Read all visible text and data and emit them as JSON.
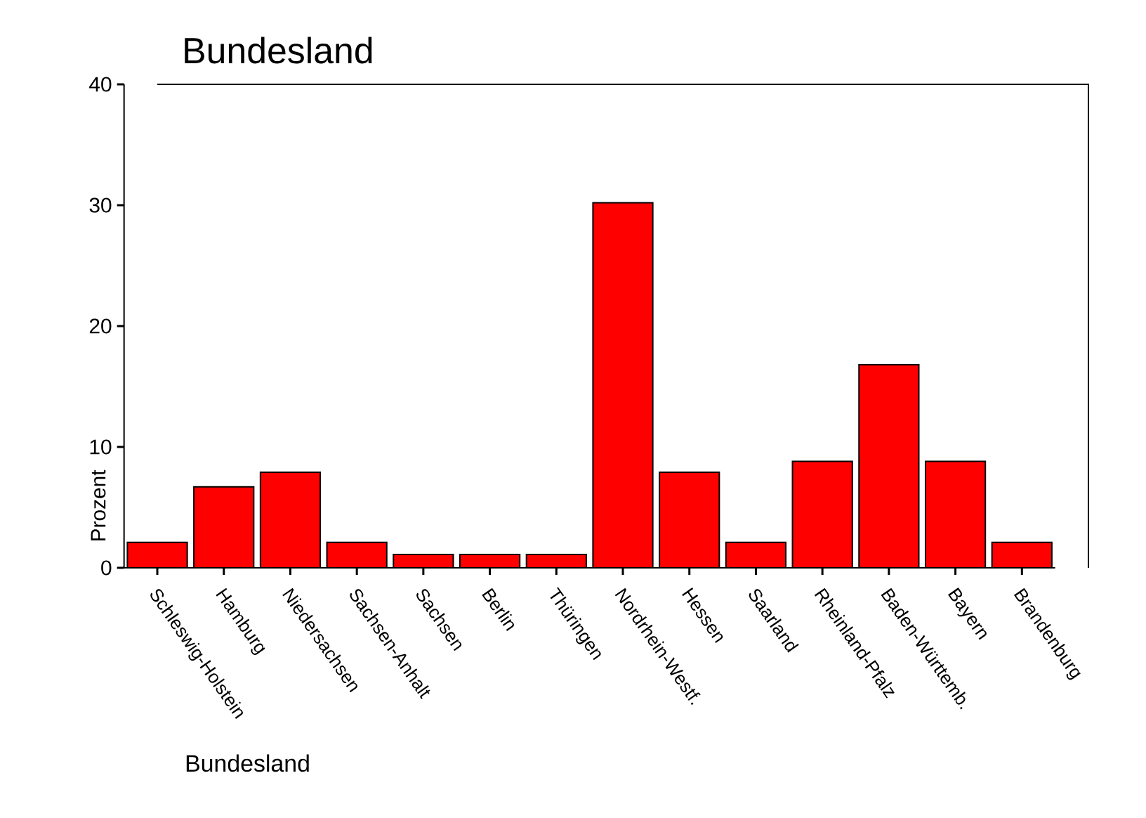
{
  "chart_data": {
    "type": "bar",
    "title": "Bundesland",
    "xlabel": "Bundesland",
    "ylabel": "Prozent",
    "categories": [
      "Schleswig-Holstein",
      "Hamburg",
      "Niedersachsen",
      "Sachsen-Anhalt",
      "Sachsen",
      "Berlin",
      "Thüringen",
      "Nordrhein-Westf.",
      "Hessen",
      "Saarland",
      "Rheinland-Pfalz",
      "Baden-Württemb.",
      "Bayern",
      "Brandenburg"
    ],
    "values": [
      2.1,
      6.7,
      7.9,
      2.1,
      1.1,
      1.1,
      1.1,
      30.2,
      7.9,
      2.1,
      8.8,
      16.8,
      8.8,
      2.1
    ],
    "color": "#ff0000",
    "ylim": [
      0,
      40
    ],
    "yticks": [
      0,
      10,
      20,
      30,
      40
    ],
    "grid": false
  }
}
